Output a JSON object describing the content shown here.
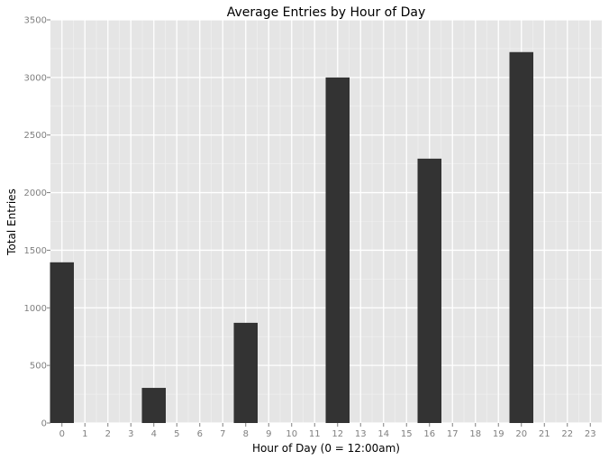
{
  "chart_data": {
    "type": "bar",
    "title": "Average Entries by Hour of Day",
    "xlabel": "Hour of Day (0 = 12:00am)",
    "ylabel": "Total Entries",
    "categories": [
      "0",
      "1",
      "2",
      "3",
      "4",
      "5",
      "6",
      "7",
      "8",
      "9",
      "10",
      "11",
      "12",
      "13",
      "14",
      "15",
      "16",
      "17",
      "18",
      "19",
      "20",
      "21",
      "22",
      "23"
    ],
    "values": [
      1395,
      0,
      0,
      0,
      305,
      0,
      0,
      0,
      870,
      0,
      0,
      0,
      3000,
      0,
      0,
      0,
      2295,
      0,
      0,
      0,
      3220,
      0,
      0,
      0
    ],
    "ylim": [
      0,
      3500
    ],
    "yticks": [
      0,
      500,
      1000,
      1500,
      2000,
      2500,
      3000,
      3500
    ],
    "grid": true,
    "colors": {
      "panel_background": "#e5e5e5",
      "grid_major": "#ffffff",
      "grid_minor": "#f2f2f2",
      "bar_fill": "#333333",
      "tick_text": "#7f7f7f"
    }
  }
}
